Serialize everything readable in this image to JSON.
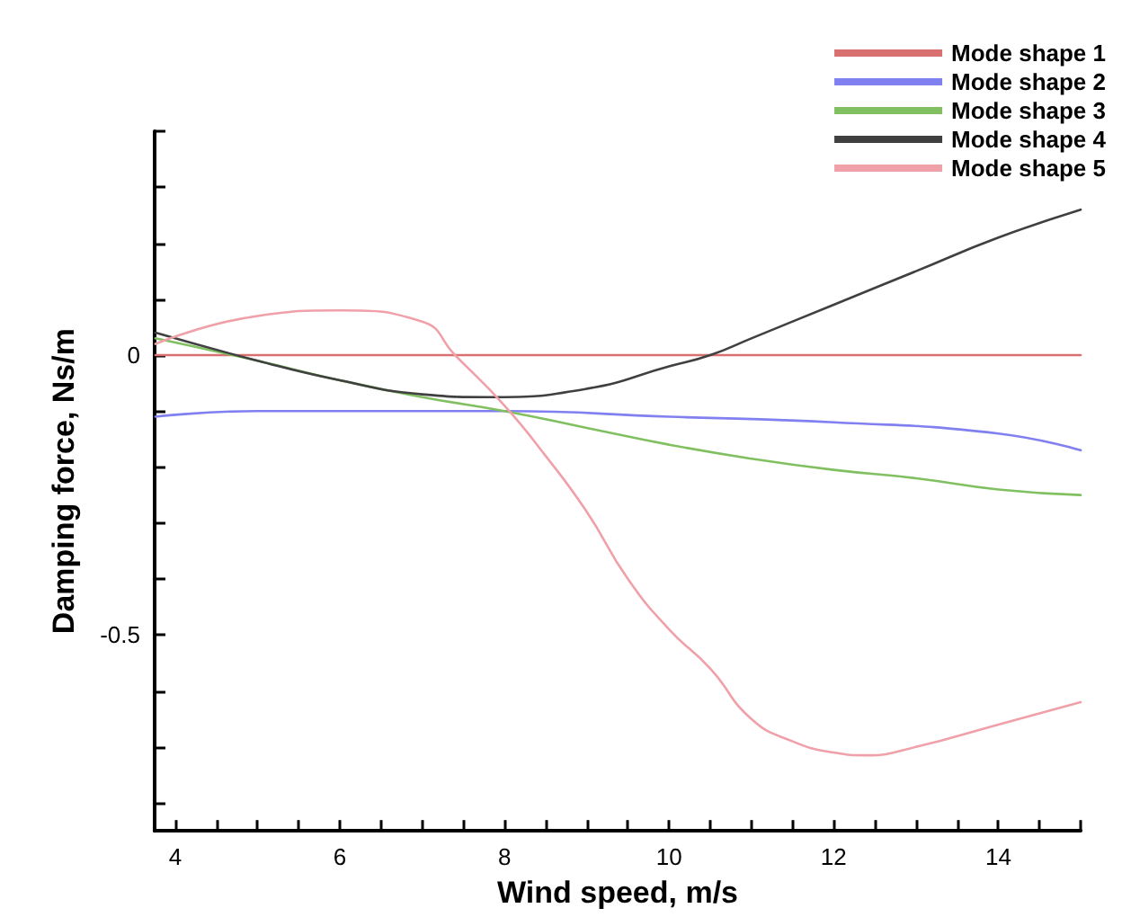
{
  "chart_data": {
    "type": "line",
    "xlabel": "Wind speed, m/s",
    "ylabel": "Damping force, Ns/m",
    "xlim": [
      3.75,
      15
    ],
    "ylim": [
      -0.85,
      0.4
    ],
    "xticks": [
      4,
      {
        "value": 4.5,
        "label": null
      },
      {
        "value": 5,
        "label": null
      },
      {
        "value": 5.5,
        "label": null
      },
      6,
      {
        "value": 6.5,
        "label": null
      },
      {
        "value": 7,
        "label": null
      },
      {
        "value": 7.5,
        "label": null
      },
      8,
      {
        "value": 8.5,
        "label": null
      },
      {
        "value": 9,
        "label": null
      },
      {
        "value": 9.5,
        "label": null
      },
      10,
      {
        "value": 10.5,
        "label": null
      },
      {
        "value": 11,
        "label": null
      },
      {
        "value": 11.5,
        "label": null
      },
      12,
      {
        "value": 12.5,
        "label": null
      },
      {
        "value": 13,
        "label": null
      },
      {
        "value": 13.5,
        "label": null
      },
      14,
      {
        "value": 14.5,
        "label": null
      },
      {
        "value": 15,
        "label": null
      }
    ],
    "yticks": [
      {
        "value": -0.8,
        "label": null
      },
      {
        "value": -0.7,
        "label": null
      },
      {
        "value": -0.6,
        "label": null
      },
      -0.5,
      {
        "value": -0.4,
        "label": null
      },
      {
        "value": -0.3,
        "label": null
      },
      {
        "value": -0.2,
        "label": null
      },
      {
        "value": -0.1,
        "label": null
      },
      0,
      {
        "value": 0.1,
        "label": null
      },
      {
        "value": 0.2,
        "label": null
      },
      {
        "value": 0.3,
        "label": null
      },
      {
        "value": 0.4,
        "label": null
      }
    ],
    "grid": false,
    "legend": "top right",
    "marker": "none",
    "line_style": "solid",
    "series": [
      {
        "name": "Mode shape 1",
        "color": "#d87070",
        "x": [
          3.76,
          15
        ],
        "values": [
          0,
          0
        ]
      },
      {
        "name": "Mode shape 2",
        "color": "#8080f0",
        "x": [
          3.76,
          5,
          6,
          8,
          10,
          12,
          14,
          15
        ],
        "values": [
          -0.11,
          -0.1,
          -0.1,
          -0.1,
          -0.11,
          -0.12,
          -0.14,
          -0.17
        ]
      },
      {
        "name": "Mode shape 3",
        "color": "#80c060",
        "x": [
          3.76,
          5,
          6,
          7,
          8,
          9,
          10,
          11,
          12,
          13,
          14,
          15
        ],
        "values": [
          0.03,
          -0.01,
          -0.045,
          -0.075,
          -0.1,
          -0.13,
          -0.16,
          -0.185,
          -0.205,
          -0.22,
          -0.24,
          -0.25
        ]
      },
      {
        "name": "Mode shape 4",
        "color": "#404040",
        "x": [
          3.76,
          5,
          6,
          7,
          7.8,
          9,
          10,
          10.5,
          11,
          12,
          13,
          14,
          15
        ],
        "values": [
          0.04,
          -0.01,
          -0.045,
          -0.07,
          -0.075,
          -0.06,
          -0.02,
          0,
          0.03,
          0.09,
          0.15,
          0.21,
          0.26
        ]
      },
      {
        "name": "Mode shape 5",
        "color": "#f0a0a8",
        "x": [
          3.76,
          5,
          6,
          7,
          7.4,
          8,
          8.5,
          9,
          9.5,
          10,
          10.5,
          11,
          11.5,
          12,
          12.4,
          13,
          14,
          15
        ],
        "values": [
          0.02,
          0.07,
          0.08,
          0.06,
          0,
          -0.09,
          -0.18,
          -0.28,
          -0.4,
          -0.49,
          -0.56,
          -0.65,
          -0.69,
          -0.71,
          -0.715,
          -0.7,
          -0.66,
          -0.62
        ]
      }
    ]
  }
}
